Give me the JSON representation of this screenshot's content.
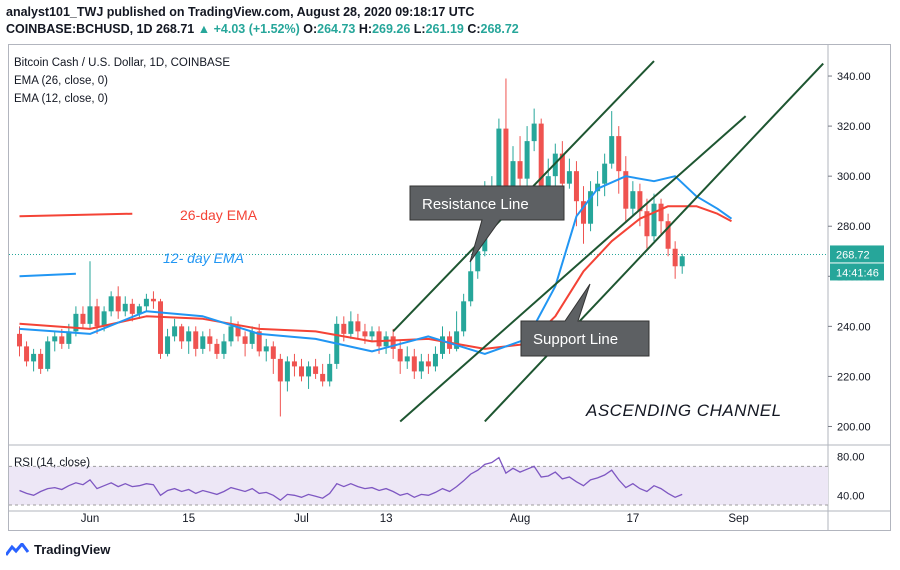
{
  "header": {
    "line1": "analyst101_TWJ published on TradingView.com, August 28, 2020 09:18:17 UTC",
    "symbol": "COINBASE:BCHUSD, 1D",
    "last": "268.71",
    "change": "+4.03 (+1.52%)",
    "o_label": "O:",
    "o": "264.73",
    "h_label": "H:",
    "h": "269.26",
    "l_label": "L:",
    "l": "261.19",
    "c_label": "C:",
    "c": "268.72"
  },
  "legend": {
    "title": "Bitcoin Cash / U.S. Dollar, 1D, COINBASE",
    "ema26": "EMA (26, close, 0)",
    "ema12": "EMA (12, close, 0)"
  },
  "annotations": {
    "ema26_label": "26-day EMA",
    "ema12_label": "12- day EMA",
    "resistance": "Resistance Line",
    "support": "Support Line",
    "channel": "ASCENDING CHANNEL"
  },
  "price_badge": {
    "value": "268.72",
    "countdown": "14:41:46"
  },
  "rsi_label": "RSI (14, close)",
  "footer": {
    "brand": "TradingView"
  },
  "colors": {
    "up": "#26a69a",
    "down": "#ef5350",
    "ema26": "#f44336",
    "ema12": "#2196f3",
    "rsi": "#7e57c2",
    "rsi_band": "#ede7f6",
    "trend": "#1e5631",
    "callout": "#5d6063"
  },
  "chart_data": {
    "type": "candlestick",
    "price_axis": {
      "range": [
        193,
        352
      ],
      "ticks": [
        200,
        220,
        240,
        260,
        280,
        300,
        320,
        340
      ],
      "tick_labels": [
        "200.00",
        "220.00",
        "240.00",
        "260.00",
        "280.00",
        "300.00",
        "320.00",
        "340.00"
      ]
    },
    "time_axis": {
      "ticks": [
        {
          "label": "Jun",
          "day": 0
        },
        {
          "label": "15",
          "day": 14
        },
        {
          "label": "Jul",
          "day": 30
        },
        {
          "label": "13",
          "day": 42
        },
        {
          "label": "Aug",
          "day": 61
        },
        {
          "label": "17",
          "day": 77
        },
        {
          "label": "Sep",
          "day": 92
        }
      ]
    },
    "first_day": -10,
    "candles": [
      [
        237,
        232,
        240,
        228
      ],
      [
        232,
        226,
        234,
        224
      ],
      [
        226,
        229,
        231,
        222
      ],
      [
        229,
        223,
        231,
        221
      ],
      [
        223,
        234,
        236,
        222
      ],
      [
        234,
        236,
        238,
        230
      ],
      [
        236,
        233,
        239,
        231
      ],
      [
        233,
        238,
        241,
        231
      ],
      [
        238,
        245,
        248,
        236
      ],
      [
        245,
        241,
        248,
        239
      ],
      [
        241,
        248,
        266,
        239
      ],
      [
        248,
        240,
        251,
        237
      ],
      [
        240,
        246,
        248,
        238
      ],
      [
        246,
        252,
        254,
        244
      ],
      [
        252,
        246,
        256,
        243
      ],
      [
        246,
        249,
        252,
        244
      ],
      [
        249,
        245,
        251,
        242
      ],
      [
        245,
        248,
        249,
        243
      ],
      [
        248,
        251,
        253,
        246
      ],
      [
        251,
        250,
        254,
        247
      ],
      [
        250,
        229,
        251,
        227
      ],
      [
        229,
        236,
        239,
        228
      ],
      [
        236,
        240,
        243,
        234
      ],
      [
        240,
        234,
        241,
        231
      ],
      [
        234,
        238,
        240,
        229
      ],
      [
        238,
        231,
        240,
        228
      ],
      [
        231,
        236,
        238,
        229
      ],
      [
        236,
        233,
        239,
        230
      ],
      [
        233,
        229,
        235,
        227
      ],
      [
        229,
        234,
        237,
        227
      ],
      [
        234,
        240,
        244,
        232
      ],
      [
        240,
        236,
        242,
        234
      ],
      [
        236,
        233,
        238,
        228
      ],
      [
        233,
        238,
        240,
        231
      ],
      [
        238,
        230,
        241,
        228
      ],
      [
        230,
        232,
        235,
        226
      ],
      [
        232,
        227,
        234,
        221
      ],
      [
        227,
        218,
        229,
        204
      ],
      [
        218,
        226,
        228,
        214
      ],
      [
        226,
        224,
        229,
        220
      ],
      [
        224,
        220,
        227,
        218
      ],
      [
        220,
        224,
        226,
        215
      ],
      [
        224,
        221,
        227,
        219
      ],
      [
        221,
        218,
        225,
        216
      ],
      [
        218,
        225,
        229,
        216
      ],
      [
        225,
        241,
        244,
        223
      ],
      [
        241,
        237,
        244,
        234
      ],
      [
        237,
        242,
        246,
        235
      ],
      [
        242,
        238,
        245,
        235
      ],
      [
        238,
        236,
        241,
        233
      ],
      [
        236,
        238,
        240,
        234
      ],
      [
        238,
        232,
        240,
        229
      ],
      [
        232,
        236,
        238,
        229
      ],
      [
        236,
        231,
        239,
        227
      ],
      [
        231,
        226,
        234,
        221
      ],
      [
        226,
        228,
        232,
        223
      ],
      [
        228,
        222,
        231,
        219
      ],
      [
        222,
        226,
        229,
        219
      ],
      [
        226,
        224,
        229,
        221
      ],
      [
        224,
        229,
        232,
        222
      ],
      [
        229,
        236,
        240,
        227
      ],
      [
        236,
        231,
        238,
        229
      ],
      [
        231,
        238,
        246,
        230
      ],
      [
        238,
        250,
        253,
        236
      ],
      [
        250,
        262,
        266,
        248
      ],
      [
        262,
        270,
        274,
        259
      ],
      [
        270,
        284,
        298,
        268
      ],
      [
        284,
        296,
        300,
        281
      ],
      [
        296,
        319,
        323,
        292
      ],
      [
        319,
        287,
        339,
        285
      ],
      [
        287,
        306,
        312,
        284
      ],
      [
        306,
        299,
        316,
        290
      ],
      [
        299,
        314,
        320,
        296
      ],
      [
        314,
        321,
        327,
        310
      ],
      [
        321,
        295,
        323,
        292
      ],
      [
        295,
        300,
        307,
        289
      ],
      [
        300,
        309,
        313,
        296
      ],
      [
        309,
        297,
        314,
        292
      ],
      [
        297,
        302,
        307,
        295
      ],
      [
        302,
        290,
        306,
        280
      ],
      [
        290,
        281,
        296,
        273
      ],
      [
        281,
        294,
        298,
        278
      ],
      [
        294,
        297,
        302,
        288
      ],
      [
        297,
        305,
        309,
        292
      ],
      [
        305,
        316,
        326,
        303
      ],
      [
        316,
        302,
        320,
        293
      ],
      [
        302,
        287,
        308,
        282
      ],
      [
        287,
        294,
        298,
        284
      ],
      [
        294,
        286,
        297,
        280
      ],
      [
        286,
        276,
        291,
        271
      ],
      [
        276,
        289,
        293,
        274
      ],
      [
        289,
        282,
        291,
        277
      ],
      [
        282,
        271,
        285,
        268
      ],
      [
        271,
        264,
        274,
        259
      ],
      [
        264,
        268,
        269,
        261
      ]
    ],
    "ema26": [
      [
        -10,
        241
      ],
      [
        0,
        239
      ],
      [
        8,
        244
      ],
      [
        16,
        243
      ],
      [
        24,
        239
      ],
      [
        32,
        238
      ],
      [
        40,
        234
      ],
      [
        48,
        235
      ],
      [
        56,
        231
      ],
      [
        62,
        233
      ],
      [
        66,
        244
      ],
      [
        70,
        262
      ],
      [
        74,
        274
      ],
      [
        78,
        283
      ],
      [
        82,
        288
      ],
      [
        86,
        288
      ],
      [
        89,
        285
      ],
      [
        91,
        282
      ]
    ],
    "ema12": [
      [
        -10,
        239
      ],
      [
        0,
        237
      ],
      [
        8,
        246
      ],
      [
        16,
        244
      ],
      [
        24,
        237
      ],
      [
        32,
        235
      ],
      [
        40,
        230
      ],
      [
        48,
        236
      ],
      [
        56,
        229
      ],
      [
        62,
        235
      ],
      [
        66,
        256
      ],
      [
        69,
        284
      ],
      [
        72,
        295
      ],
      [
        76,
        300
      ],
      [
        80,
        298
      ],
      [
        83,
        300
      ],
      [
        86,
        292
      ],
      [
        89,
        287
      ],
      [
        91,
        283
      ]
    ],
    "rsi": {
      "range": [
        30,
        90
      ],
      "band": [
        30,
        70
      ],
      "ticks": [
        40,
        80
      ],
      "tick_labels": [
        "40.00",
        "80.00"
      ],
      "values": [
        45,
        42,
        40,
        44,
        47,
        48,
        46,
        50,
        53,
        51,
        56,
        47,
        50,
        53,
        49,
        52,
        49,
        50,
        52,
        51,
        40,
        45,
        47,
        44,
        46,
        42,
        45,
        43,
        41,
        44,
        48,
        46,
        44,
        47,
        42,
        43,
        40,
        35,
        41,
        40,
        38,
        41,
        39,
        37,
        42,
        52,
        49,
        52,
        49,
        47,
        48,
        45,
        47,
        44,
        40,
        42,
        38,
        41,
        40,
        43,
        47,
        44,
        49,
        55,
        62,
        66,
        72,
        74,
        79,
        63,
        68,
        64,
        67,
        70,
        59,
        60,
        64,
        57,
        59,
        54,
        50,
        56,
        58,
        61,
        66,
        56,
        48,
        52,
        47,
        44,
        50,
        47,
        42,
        38,
        41
      ]
    },
    "trendlines": {
      "resistance": [
        [
          43,
          238
        ],
        [
          80,
          346
        ]
      ],
      "support": [
        [
          44,
          202
        ],
        [
          93,
          324
        ]
      ],
      "upper_channel": [
        [
          56,
          202
        ],
        [
          104,
          345
        ]
      ],
      "ema26_marker": [
        [
          -10,
          284
        ],
        [
          6,
          285
        ]
      ],
      "ema12_marker": [
        [
          -10,
          260
        ],
        [
          -2,
          261
        ]
      ]
    },
    "current_price": 268.72
  }
}
